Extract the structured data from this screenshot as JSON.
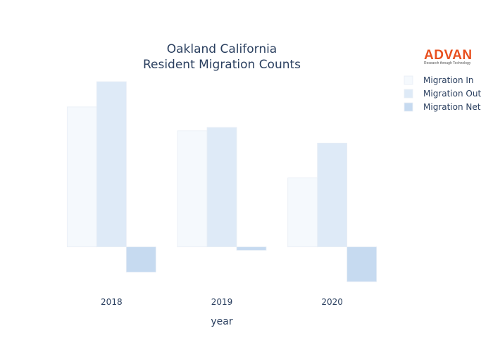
{
  "chart_data": {
    "type": "bar",
    "title_lines": [
      "Oakland California",
      "Resident Migration Counts"
    ],
    "xlabel": "year",
    "ylabel": "",
    "categories": [
      "2018",
      "2019",
      "2020"
    ],
    "series": [
      {
        "name": "Migration In",
        "values": [
          2050,
          1700,
          1010
        ],
        "color": "#f5f9fd"
      },
      {
        "name": "Migration Out",
        "values": [
          2420,
          1750,
          1520
        ],
        "color": "#deeaf7"
      },
      {
        "name": "Migration Net",
        "values": [
          -370,
          -50,
          -510
        ],
        "color": "#c6daf0"
      }
    ],
    "ylim": [
      -550,
      2420
    ],
    "grid": false,
    "legend_position": "top-right"
  },
  "logo": {
    "name": "ADVAN",
    "tagline": "Research through Technology"
  }
}
